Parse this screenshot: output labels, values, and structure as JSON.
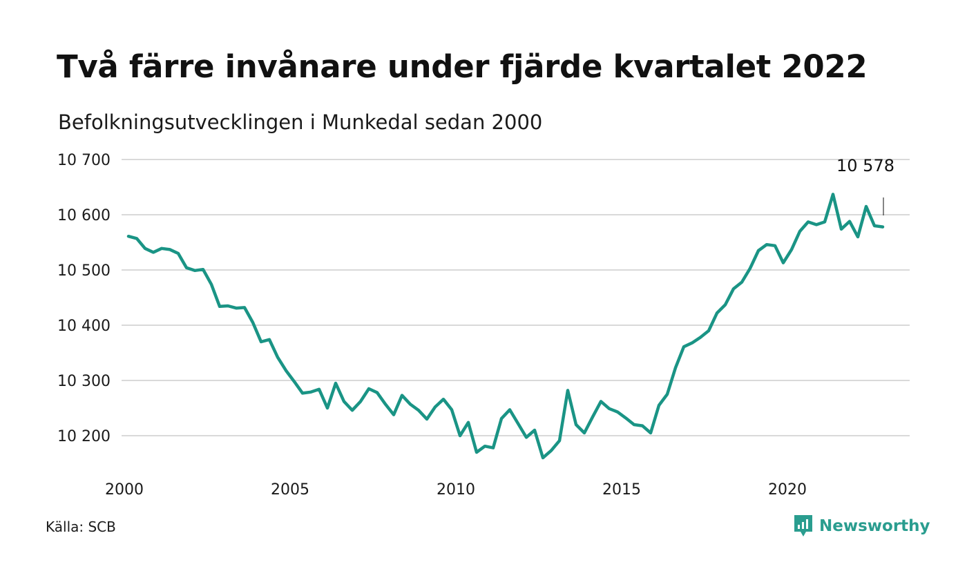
{
  "header": {
    "title": "Två färre invånare under fjärde kvartalet 2022",
    "subtitle": "Befolkningsutvecklingen i Munkedal sedan 2000"
  },
  "footer": {
    "source": "Källa: SCB",
    "brand": "Newsworthy",
    "brand_icon": "newsworthy-logo-icon"
  },
  "colors": {
    "line": "#1a9485",
    "grid": "#d9d9d9",
    "brand": "#2a9d8f"
  },
  "chart_data": {
    "type": "line",
    "title": "Två färre invånare under fjärde kvartalet 2022",
    "subtitle": "Befolkningsutvecklingen i Munkedal sedan 2000",
    "x_unit": "quarter",
    "xlim": [
      2000,
      2023.7
    ],
    "ylim": [
      10140,
      10700
    ],
    "x_ticks": [
      2000,
      2005,
      2010,
      2015,
      2020
    ],
    "x_tick_labels": [
      "2000",
      "2005",
      "2010",
      "2015",
      "2020"
    ],
    "y_ticks": [
      10200,
      10300,
      10400,
      10500,
      10600,
      10700
    ],
    "y_tick_labels": [
      "10 200",
      "10 300",
      "10 400",
      "10 500",
      "10 600",
      "10 700"
    ],
    "grid": true,
    "series": [
      {
        "start": "2000 Q1",
        "values": [
          10561,
          10557,
          10539,
          10532,
          10539,
          10537,
          10530,
          10504,
          10499,
          10501,
          10474,
          10434,
          10435,
          10431,
          10432,
          10405,
          10370,
          10374,
          10342,
          10318,
          10298,
          10277,
          10279,
          10284,
          10250,
          10295,
          10262,
          10246,
          10262,
          10285,
          10278,
          10257,
          10238,
          10273,
          10257,
          10246,
          10230,
          10252,
          10266,
          10247,
          10200,
          10224,
          10170,
          10181,
          10178,
          10231,
          10247,
          10222,
          10197,
          10210,
          10160,
          10173,
          10191,
          10282,
          10220,
          10205,
          10234,
          10262,
          10249,
          10243,
          10232,
          10220,
          10218,
          10205,
          10255,
          10275,
          10323,
          10361,
          10368,
          10378,
          10390,
          10422,
          10437,
          10466,
          10478,
          10503,
          10535,
          10546,
          10544,
          10513,
          10537,
          10570,
          10587,
          10582,
          10587,
          10637,
          10574,
          10588,
          10560,
          10615,
          10580,
          10578
        ]
      }
    ],
    "annotations": [
      {
        "text": "10 578",
        "x": 2022.875,
        "y": 10578
      }
    ]
  }
}
